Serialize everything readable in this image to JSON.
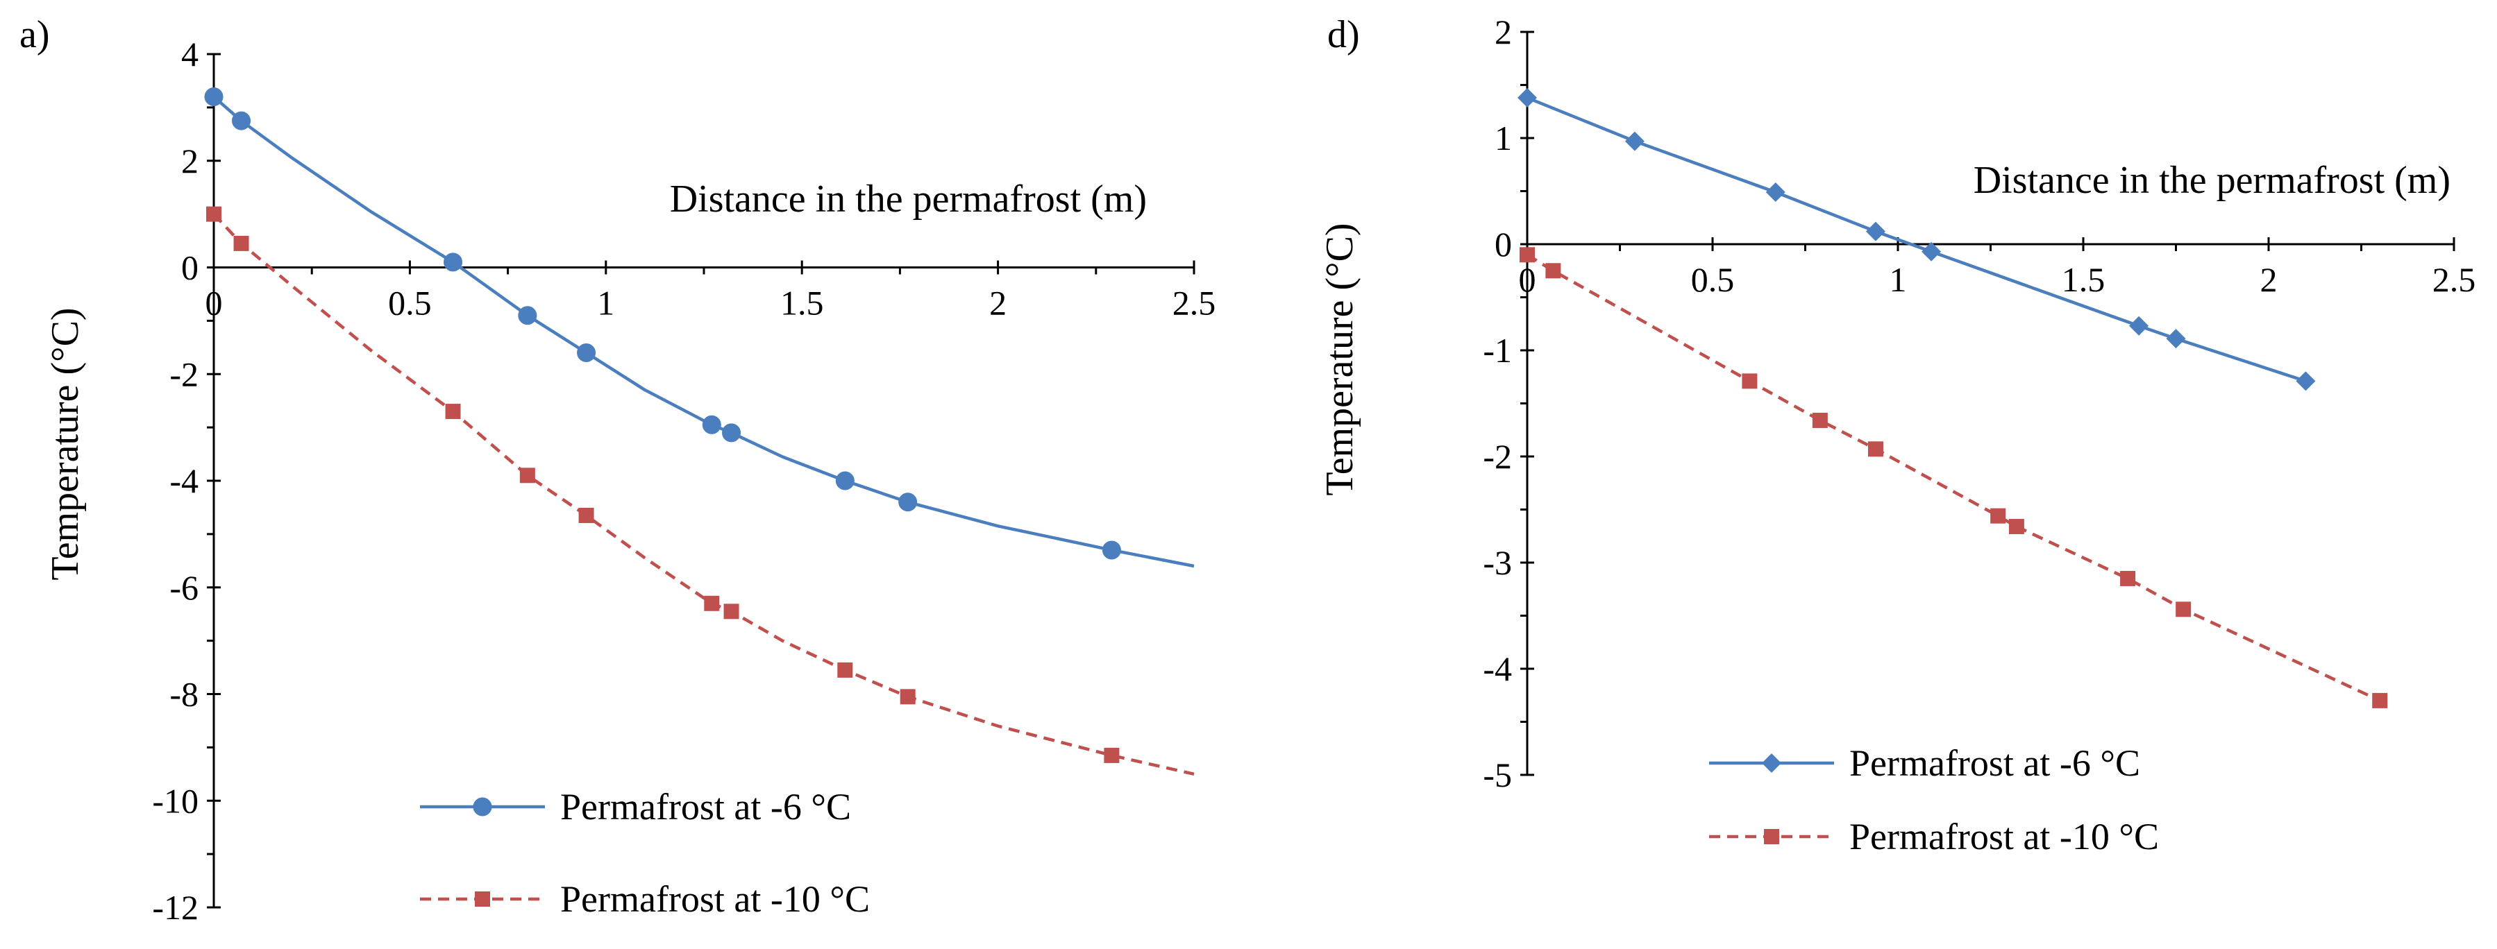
{
  "chart_data": [
    {
      "panel_label": "a)",
      "type": "line",
      "xlabel": "Distance in the permafrost (m)",
      "ylabel": "Temperature (°C)",
      "xlim": [
        0,
        2.5
      ],
      "ylim": [
        -12,
        4
      ],
      "x_ticks": [
        {
          "value": 0,
          "label": "0"
        },
        {
          "value": 0.5,
          "label": "0.5"
        },
        {
          "value": 1,
          "label": "1"
        },
        {
          "value": 1.5,
          "label": "1.5"
        },
        {
          "value": 2,
          "label": "2"
        },
        {
          "value": 2.5,
          "label": "2.5"
        }
      ],
      "y_ticks": [
        {
          "value": 4,
          "label": "4"
        },
        {
          "value": 2,
          "label": "2"
        },
        {
          "value": 0,
          "label": "0"
        },
        {
          "value": -2,
          "label": "-2"
        },
        {
          "value": -4,
          "label": "-4"
        },
        {
          "value": -6,
          "label": "-6"
        },
        {
          "value": -8,
          "label": "-8"
        },
        {
          "value": -10,
          "label": "-10"
        },
        {
          "value": -12,
          "label": "-12"
        }
      ],
      "legend_position": "bottom-center",
      "series": [
        {
          "name": "Permafrost at -6 °C",
          "marker": "circle",
          "dash": "solid",
          "color": "#4a7ebf",
          "x": [
            0,
            0.07,
            0.61,
            0.8,
            0.95,
            1.27,
            1.32,
            1.61,
            1.77,
            2.29
          ],
          "y": [
            3.2,
            2.75,
            0.1,
            -0.9,
            -1.6,
            -2.95,
            -3.1,
            -4.0,
            -4.4,
            -5.3
          ],
          "curve_x": [
            0,
            0.07,
            0.2,
            0.4,
            0.61,
            0.8,
            0.95,
            1.1,
            1.27,
            1.32,
            1.45,
            1.61,
            1.77,
            2.0,
            2.29,
            2.5
          ],
          "curve_y": [
            3.2,
            2.75,
            2.05,
            1.05,
            0.1,
            -0.9,
            -1.6,
            -2.3,
            -2.95,
            -3.1,
            -3.55,
            -4.0,
            -4.4,
            -4.85,
            -5.3,
            -5.6
          ]
        },
        {
          "name": "Permafrost at -10 °C",
          "marker": "square",
          "dash": "dashed",
          "color": "#c0504d",
          "x": [
            0,
            0.07,
            0.61,
            0.8,
            0.95,
            1.27,
            1.32,
            1.61,
            1.77,
            2.29
          ],
          "y": [
            1.0,
            0.45,
            -2.7,
            -3.9,
            -4.65,
            -6.3,
            -6.45,
            -7.55,
            -8.05,
            -9.15
          ],
          "curve_x": [
            0,
            0.07,
            0.2,
            0.4,
            0.61,
            0.8,
            0.95,
            1.1,
            1.27,
            1.32,
            1.45,
            1.61,
            1.77,
            2.0,
            2.29,
            2.5
          ],
          "curve_y": [
            1.0,
            0.45,
            -0.35,
            -1.55,
            -2.7,
            -3.9,
            -4.65,
            -5.45,
            -6.3,
            -6.45,
            -7.0,
            -7.55,
            -8.05,
            -8.6,
            -9.15,
            -9.5
          ]
        }
      ]
    },
    {
      "panel_label": "d)",
      "type": "line",
      "xlabel": "Distance in the permafrost (m)",
      "ylabel": "Temperature (°C)",
      "xlim": [
        0,
        2.5
      ],
      "ylim": [
        -5,
        2
      ],
      "x_ticks": [
        {
          "value": 0,
          "label": "0"
        },
        {
          "value": 0.5,
          "label": "0.5"
        },
        {
          "value": 1,
          "label": "1"
        },
        {
          "value": 1.5,
          "label": "1.5"
        },
        {
          "value": 2,
          "label": "2"
        },
        {
          "value": 2.5,
          "label": "2.5"
        }
      ],
      "y_ticks": [
        {
          "value": 2,
          "label": "2"
        },
        {
          "value": 1,
          "label": "1"
        },
        {
          "value": 0,
          "label": "0"
        },
        {
          "value": -1,
          "label": "-1"
        },
        {
          "value": -2,
          "label": "-2"
        },
        {
          "value": -3,
          "label": "-3"
        },
        {
          "value": -4,
          "label": "-4"
        },
        {
          "value": -5,
          "label": "-5"
        }
      ],
      "legend_position": "bottom-left",
      "series": [
        {
          "name": "Permafrost at -6 °C",
          "marker": "diamond",
          "dash": "solid",
          "color": "#4a7ebf",
          "x": [
            0,
            0.29,
            0.67,
            0.94,
            1.09,
            1.65,
            1.75,
            2.1
          ],
          "y": [
            1.38,
            0.97,
            0.49,
            0.12,
            -0.07,
            -0.77,
            -0.89,
            -1.29
          ],
          "curve_x": [
            0,
            0.29,
            0.67,
            0.94,
            1.09,
            1.65,
            1.75,
            2.1
          ],
          "curve_y": [
            1.38,
            0.97,
            0.49,
            0.12,
            -0.07,
            -0.77,
            -0.89,
            -1.29
          ]
        },
        {
          "name": "Permafrost at -10 °C",
          "marker": "square",
          "dash": "dashed",
          "color": "#c0504d",
          "x": [
            0,
            0.07,
            0.6,
            0.79,
            0.94,
            1.27,
            1.32,
            1.62,
            1.77,
            2.3
          ],
          "y": [
            -0.1,
            -0.25,
            -1.29,
            -1.66,
            -1.93,
            -2.56,
            -2.66,
            -3.15,
            -3.44,
            -4.3
          ],
          "curve_x": [
            0,
            0.07,
            0.6,
            0.79,
            0.94,
            1.27,
            1.32,
            1.62,
            1.77,
            2.3
          ],
          "curve_y": [
            -0.1,
            -0.25,
            -1.29,
            -1.66,
            -1.93,
            -2.56,
            -2.66,
            -3.15,
            -3.44,
            -4.3
          ]
        }
      ]
    }
  ]
}
